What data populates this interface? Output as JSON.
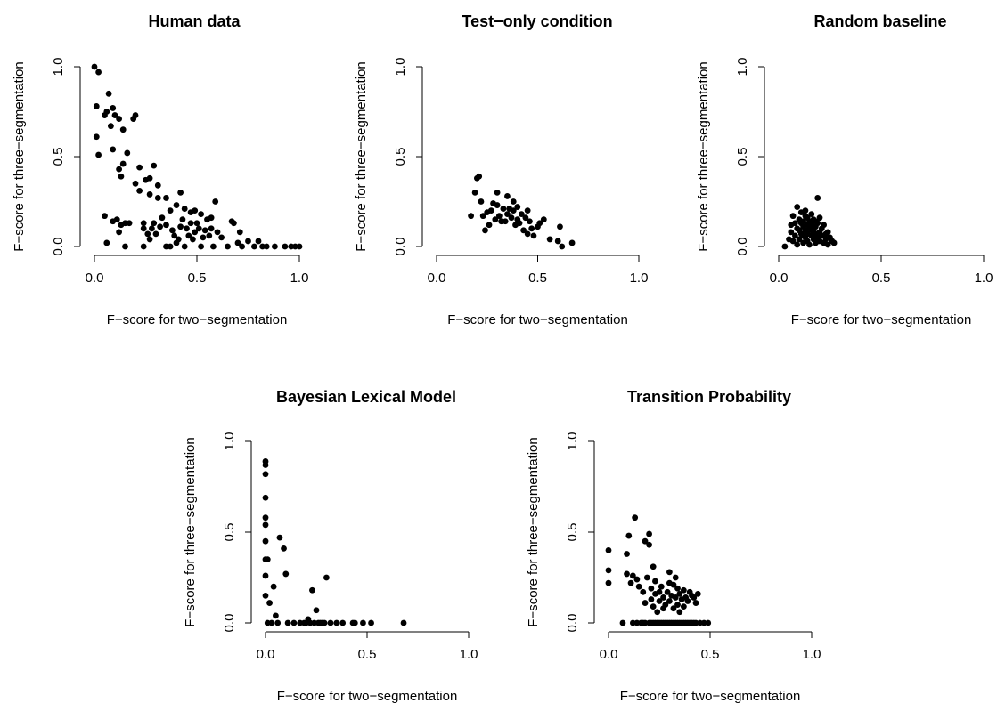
{
  "chart_data": [
    {
      "type": "scatter",
      "title": "Human data",
      "xlabel": "F−score for two−segmentation",
      "ylabel": "F−score for three−segmentation",
      "xlim": [
        0,
        1
      ],
      "ylim": [
        0,
        1
      ],
      "xticks": [
        "0.0",
        "0.5",
        "1.0"
      ],
      "yticks": [
        "0.0",
        "0.5",
        "1.0"
      ],
      "points": [
        [
          0.0,
          1.0
        ],
        [
          0.02,
          0.97
        ],
        [
          0.01,
          0.78
        ],
        [
          0.01,
          0.61
        ],
        [
          0.02,
          0.51
        ],
        [
          0.05,
          0.73
        ],
        [
          0.06,
          0.75
        ],
        [
          0.07,
          0.85
        ],
        [
          0.08,
          0.67
        ],
        [
          0.09,
          0.77
        ],
        [
          0.1,
          0.73
        ],
        [
          0.12,
          0.71
        ],
        [
          0.14,
          0.65
        ],
        [
          0.09,
          0.54
        ],
        [
          0.12,
          0.43
        ],
        [
          0.14,
          0.46
        ],
        [
          0.16,
          0.52
        ],
        [
          0.19,
          0.71
        ],
        [
          0.2,
          0.73
        ],
        [
          0.13,
          0.39
        ],
        [
          0.2,
          0.35
        ],
        [
          0.22,
          0.44
        ],
        [
          0.22,
          0.31
        ],
        [
          0.25,
          0.37
        ],
        [
          0.27,
          0.29
        ],
        [
          0.29,
          0.45
        ],
        [
          0.27,
          0.38
        ],
        [
          0.31,
          0.27
        ],
        [
          0.31,
          0.34
        ],
        [
          0.35,
          0.27
        ],
        [
          0.37,
          0.2
        ],
        [
          0.4,
          0.23
        ],
        [
          0.42,
          0.3
        ],
        [
          0.44,
          0.21
        ],
        [
          0.47,
          0.19
        ],
        [
          0.49,
          0.2
        ],
        [
          0.52,
          0.18
        ],
        [
          0.57,
          0.16
        ],
        [
          0.59,
          0.25
        ],
        [
          0.05,
          0.17
        ],
        [
          0.06,
          0.02
        ],
        [
          0.09,
          0.14
        ],
        [
          0.11,
          0.15
        ],
        [
          0.12,
          0.08
        ],
        [
          0.13,
          0.12
        ],
        [
          0.15,
          0.0
        ],
        [
          0.15,
          0.13
        ],
        [
          0.17,
          0.13
        ],
        [
          0.24,
          0.0
        ],
        [
          0.24,
          0.1
        ],
        [
          0.24,
          0.13
        ],
        [
          0.26,
          0.07
        ],
        [
          0.27,
          0.04
        ],
        [
          0.28,
          0.1
        ],
        [
          0.29,
          0.13
        ],
        [
          0.3,
          0.07
        ],
        [
          0.32,
          0.11
        ],
        [
          0.33,
          0.16
        ],
        [
          0.35,
          0.12
        ],
        [
          0.35,
          0.0
        ],
        [
          0.37,
          0.0
        ],
        [
          0.38,
          0.09
        ],
        [
          0.39,
          0.06
        ],
        [
          0.4,
          0.02
        ],
        [
          0.41,
          0.04
        ],
        [
          0.42,
          0.11
        ],
        [
          0.43,
          0.15
        ],
        [
          0.44,
          0.0
        ],
        [
          0.45,
          0.1
        ],
        [
          0.46,
          0.06
        ],
        [
          0.47,
          0.13
        ],
        [
          0.48,
          0.04
        ],
        [
          0.49,
          0.08
        ],
        [
          0.5,
          0.13
        ],
        [
          0.51,
          0.1
        ],
        [
          0.52,
          0.0
        ],
        [
          0.53,
          0.05
        ],
        [
          0.54,
          0.09
        ],
        [
          0.55,
          0.15
        ],
        [
          0.56,
          0.06
        ],
        [
          0.57,
          0.1
        ],
        [
          0.58,
          0.0
        ],
        [
          0.6,
          0.08
        ],
        [
          0.62,
          0.05
        ],
        [
          0.65,
          0.0
        ],
        [
          0.67,
          0.14
        ],
        [
          0.68,
          0.13
        ],
        [
          0.7,
          0.02
        ],
        [
          0.71,
          0.08
        ],
        [
          0.72,
          0.0
        ],
        [
          0.75,
          0.03
        ],
        [
          0.78,
          0.0
        ],
        [
          0.8,
          0.03
        ],
        [
          0.82,
          0.0
        ],
        [
          0.84,
          0.0
        ],
        [
          0.88,
          0.0
        ],
        [
          0.93,
          0.0
        ],
        [
          0.96,
          0.0
        ],
        [
          0.98,
          0.0
        ],
        [
          1.0,
          0.0
        ]
      ]
    },
    {
      "type": "scatter",
      "title": "Test−only condition",
      "xlabel": "F−score for two−segmentation",
      "ylabel": "F−score for three−segmentation",
      "xlim": [
        0,
        1
      ],
      "ylim": [
        0,
        1
      ],
      "xticks": [
        "0.0",
        "0.5",
        "1.0"
      ],
      "yticks": [
        "0.0",
        "0.5",
        "1.0"
      ],
      "points": [
        [
          0.17,
          0.17
        ],
        [
          0.19,
          0.3
        ],
        [
          0.2,
          0.38
        ],
        [
          0.21,
          0.39
        ],
        [
          0.22,
          0.25
        ],
        [
          0.23,
          0.17
        ],
        [
          0.24,
          0.09
        ],
        [
          0.25,
          0.19
        ],
        [
          0.26,
          0.12
        ],
        [
          0.27,
          0.2
        ],
        [
          0.28,
          0.24
        ],
        [
          0.29,
          0.15
        ],
        [
          0.3,
          0.23
        ],
        [
          0.3,
          0.3
        ],
        [
          0.31,
          0.17
        ],
        [
          0.32,
          0.14
        ],
        [
          0.33,
          0.21
        ],
        [
          0.34,
          0.14
        ],
        [
          0.35,
          0.18
        ],
        [
          0.35,
          0.28
        ],
        [
          0.36,
          0.21
        ],
        [
          0.37,
          0.16
        ],
        [
          0.38,
          0.25
        ],
        [
          0.38,
          0.2
        ],
        [
          0.39,
          0.12
        ],
        [
          0.4,
          0.22
        ],
        [
          0.4,
          0.15
        ],
        [
          0.41,
          0.13
        ],
        [
          0.42,
          0.18
        ],
        [
          0.43,
          0.09
        ],
        [
          0.44,
          0.16
        ],
        [
          0.45,
          0.07
        ],
        [
          0.45,
          0.2
        ],
        [
          0.46,
          0.14
        ],
        [
          0.47,
          0.1
        ],
        [
          0.48,
          0.06
        ],
        [
          0.5,
          0.11
        ],
        [
          0.51,
          0.13
        ],
        [
          0.53,
          0.15
        ],
        [
          0.56,
          0.04
        ],
        [
          0.6,
          0.03
        ],
        [
          0.61,
          0.11
        ],
        [
          0.62,
          0.0
        ],
        [
          0.67,
          0.02
        ]
      ]
    },
    {
      "type": "scatter",
      "title": "Random baseline",
      "xlabel": "F−score for two−segmentation",
      "ylabel": "F−score for three−segmentation",
      "xlim": [
        0,
        1
      ],
      "ylim": [
        0,
        1
      ],
      "xticks": [
        "0.0",
        "0.5",
        "1.0"
      ],
      "yticks": [
        "0.0",
        "0.5",
        "1.0"
      ],
      "points": [
        [
          0.03,
          0.0
        ],
        [
          0.05,
          0.04
        ],
        [
          0.06,
          0.08
        ],
        [
          0.06,
          0.12
        ],
        [
          0.07,
          0.03
        ],
        [
          0.07,
          0.17
        ],
        [
          0.08,
          0.06
        ],
        [
          0.08,
          0.13
        ],
        [
          0.09,
          0.22
        ],
        [
          0.09,
          0.01
        ],
        [
          0.1,
          0.09
        ],
        [
          0.1,
          0.15
        ],
        [
          0.1,
          0.04
        ],
        [
          0.11,
          0.19
        ],
        [
          0.11,
          0.07
        ],
        [
          0.12,
          0.11
        ],
        [
          0.12,
          0.02
        ],
        [
          0.12,
          0.14
        ],
        [
          0.13,
          0.05
        ],
        [
          0.13,
          0.09
        ],
        [
          0.13,
          0.17
        ],
        [
          0.14,
          0.12
        ],
        [
          0.14,
          0.03
        ],
        [
          0.14,
          0.07
        ],
        [
          0.15,
          0.1
        ],
        [
          0.15,
          0.14
        ],
        [
          0.15,
          0.01
        ],
        [
          0.16,
          0.06
        ],
        [
          0.16,
          0.12
        ],
        [
          0.16,
          0.18
        ],
        [
          0.17,
          0.04
        ],
        [
          0.17,
          0.09
        ],
        [
          0.17,
          0.15
        ],
        [
          0.18,
          0.07
        ],
        [
          0.18,
          0.02
        ],
        [
          0.18,
          0.11
        ],
        [
          0.19,
          0.05
        ],
        [
          0.19,
          0.13
        ],
        [
          0.19,
          0.27
        ],
        [
          0.2,
          0.08
        ],
        [
          0.2,
          0.16
        ],
        [
          0.2,
          0.03
        ],
        [
          0.21,
          0.06
        ],
        [
          0.21,
          0.1
        ],
        [
          0.22,
          0.12
        ],
        [
          0.22,
          0.02
        ],
        [
          0.23,
          0.07
        ],
        [
          0.23,
          0.04
        ],
        [
          0.24,
          0.08
        ],
        [
          0.24,
          0.01
        ],
        [
          0.25,
          0.05
        ],
        [
          0.26,
          0.03
        ],
        [
          0.27,
          0.02
        ],
        [
          0.11,
          0.13
        ],
        [
          0.14,
          0.16
        ],
        [
          0.12,
          0.06
        ],
        [
          0.16,
          0.09
        ],
        [
          0.13,
          0.2
        ],
        [
          0.18,
          0.14
        ],
        [
          0.09,
          0.1
        ]
      ]
    },
    {
      "type": "scatter",
      "title": "Bayesian Lexical Model",
      "xlabel": "F−score for two−segmentation",
      "ylabel": "F−score for three−segmentation",
      "xlim": [
        0,
        1
      ],
      "ylim": [
        0,
        1
      ],
      "xticks": [
        "0.0",
        "0.5",
        "1.0"
      ],
      "yticks": [
        "0.0",
        "0.5",
        "1.0"
      ],
      "points": [
        [
          0.0,
          0.89
        ],
        [
          0.0,
          0.87
        ],
        [
          0.0,
          0.82
        ],
        [
          0.0,
          0.69
        ],
        [
          0.0,
          0.58
        ],
        [
          0.0,
          0.54
        ],
        [
          0.0,
          0.45
        ],
        [
          0.0,
          0.35
        ],
        [
          0.0,
          0.26
        ],
        [
          0.0,
          0.15
        ],
        [
          0.01,
          0.35
        ],
        [
          0.01,
          0.0
        ],
        [
          0.02,
          0.11
        ],
        [
          0.03,
          0.0
        ],
        [
          0.04,
          0.2
        ],
        [
          0.05,
          0.04
        ],
        [
          0.06,
          0.0
        ],
        [
          0.07,
          0.47
        ],
        [
          0.09,
          0.41
        ],
        [
          0.1,
          0.27
        ],
        [
          0.11,
          0.0
        ],
        [
          0.14,
          0.0
        ],
        [
          0.17,
          0.0
        ],
        [
          0.19,
          0.0
        ],
        [
          0.2,
          0.0
        ],
        [
          0.21,
          0.02
        ],
        [
          0.22,
          0.0
        ],
        [
          0.23,
          0.18
        ],
        [
          0.24,
          0.0
        ],
        [
          0.25,
          0.07
        ],
        [
          0.27,
          0.0
        ],
        [
          0.29,
          0.0
        ],
        [
          0.3,
          0.25
        ],
        [
          0.32,
          0.0
        ],
        [
          0.35,
          0.0
        ],
        [
          0.38,
          0.0
        ],
        [
          0.43,
          0.0
        ],
        [
          0.44,
          0.0
        ],
        [
          0.48,
          0.0
        ],
        [
          0.52,
          0.0
        ],
        [
          0.68,
          0.0
        ],
        [
          0.28,
          0.0
        ],
        [
          0.26,
          0.0
        ]
      ]
    },
    {
      "type": "scatter",
      "title": "Transition Probability",
      "xlabel": "F−score for two−segmentation",
      "ylabel": "F−score for three−segmentation",
      "xlim": [
        0,
        1
      ],
      "ylim": [
        0,
        1
      ],
      "xticks": [
        "0.0",
        "0.5",
        "1.0"
      ],
      "yticks": [
        "0.0",
        "0.5",
        "1.0"
      ],
      "points": [
        [
          0.0,
          0.4
        ],
        [
          0.0,
          0.29
        ],
        [
          0.0,
          0.22
        ],
        [
          0.07,
          0.0
        ],
        [
          0.09,
          0.27
        ],
        [
          0.09,
          0.38
        ],
        [
          0.1,
          0.48
        ],
        [
          0.11,
          0.22
        ],
        [
          0.12,
          0.0
        ],
        [
          0.12,
          0.26
        ],
        [
          0.13,
          0.58
        ],
        [
          0.14,
          0.24
        ],
        [
          0.14,
          0.0
        ],
        [
          0.15,
          0.2
        ],
        [
          0.16,
          0.0
        ],
        [
          0.17,
          0.17
        ],
        [
          0.17,
          0.0
        ],
        [
          0.18,
          0.45
        ],
        [
          0.18,
          0.11
        ],
        [
          0.18,
          0.0
        ],
        [
          0.19,
          0.25
        ],
        [
          0.2,
          0.49
        ],
        [
          0.2,
          0.43
        ],
        [
          0.2,
          0.0
        ],
        [
          0.21,
          0.19
        ],
        [
          0.21,
          0.13
        ],
        [
          0.21,
          0.0
        ],
        [
          0.22,
          0.31
        ],
        [
          0.22,
          0.09
        ],
        [
          0.22,
          0.0
        ],
        [
          0.23,
          0.23
        ],
        [
          0.23,
          0.16
        ],
        [
          0.23,
          0.0
        ],
        [
          0.24,
          0.06
        ],
        [
          0.24,
          0.0
        ],
        [
          0.25,
          0.17
        ],
        [
          0.25,
          0.12
        ],
        [
          0.25,
          0.0
        ],
        [
          0.26,
          0.2
        ],
        [
          0.26,
          0.0
        ],
        [
          0.27,
          0.08
        ],
        [
          0.27,
          0.14
        ],
        [
          0.27,
          0.0
        ],
        [
          0.28,
          0.1
        ],
        [
          0.28,
          0.0
        ],
        [
          0.29,
          0.17
        ],
        [
          0.29,
          0.0
        ],
        [
          0.3,
          0.28
        ],
        [
          0.3,
          0.22
        ],
        [
          0.3,
          0.12
        ],
        [
          0.3,
          0.0
        ],
        [
          0.31,
          0.15
        ],
        [
          0.31,
          0.0
        ],
        [
          0.32,
          0.21
        ],
        [
          0.32,
          0.08
        ],
        [
          0.32,
          0.0
        ],
        [
          0.33,
          0.25
        ],
        [
          0.33,
          0.14
        ],
        [
          0.33,
          0.0
        ],
        [
          0.34,
          0.19
        ],
        [
          0.34,
          0.1
        ],
        [
          0.34,
          0.0
        ],
        [
          0.35,
          0.16
        ],
        [
          0.35,
          0.06
        ],
        [
          0.35,
          0.0
        ],
        [
          0.36,
          0.13
        ],
        [
          0.36,
          0.0
        ],
        [
          0.37,
          0.18
        ],
        [
          0.37,
          0.09
        ],
        [
          0.37,
          0.0
        ],
        [
          0.38,
          0.14
        ],
        [
          0.38,
          0.0
        ],
        [
          0.39,
          0.12
        ],
        [
          0.39,
          0.0
        ],
        [
          0.4,
          0.17
        ],
        [
          0.4,
          0.0
        ],
        [
          0.41,
          0.15
        ],
        [
          0.41,
          0.0
        ],
        [
          0.42,
          0.14
        ],
        [
          0.42,
          0.0
        ],
        [
          0.43,
          0.11
        ],
        [
          0.43,
          0.0
        ],
        [
          0.44,
          0.16
        ],
        [
          0.45,
          0.0
        ],
        [
          0.47,
          0.0
        ],
        [
          0.49,
          0.0
        ]
      ]
    }
  ]
}
